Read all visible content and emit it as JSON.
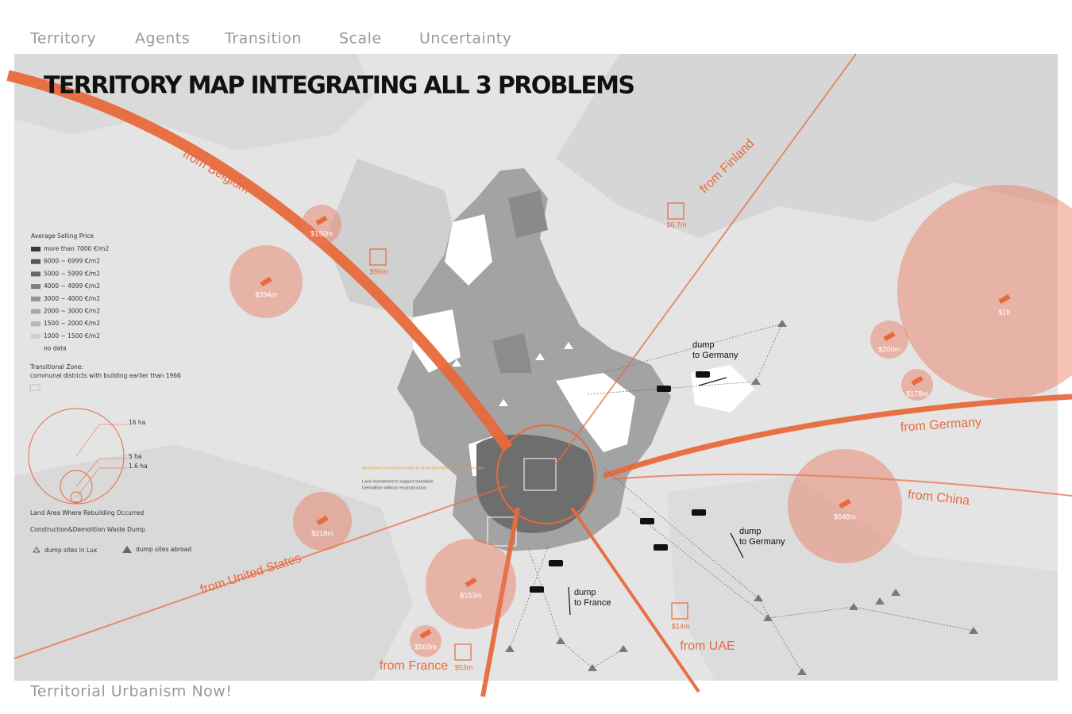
{
  "nav": {
    "tabs": [
      "Territory",
      "Agents",
      "Transition",
      "Scale",
      "Uncertainty"
    ],
    "active": 0
  },
  "title": "TERRITORY MAP INTEGRATING ALL 3 PROBLEMS",
  "footer": "Territorial Urbanism Now!",
  "legend": {
    "price_title": "Average Selling Price",
    "price_items": [
      "more than 7000 €/m2",
      "6000 ~ 6999 €/m2",
      "5000 ~ 5999 €/m2",
      "4000 ~ 4999 €/m2",
      "3000 ~ 4000 €/m2",
      "2000 ~ 3000 €/m2",
      "1500 ~ 2000 €/m2",
      "1000 ~ 1500 €/m2",
      "no data"
    ],
    "transition_title": "Transitional Zone:",
    "transition_desc": "communal districts with building earlier than 1966",
    "circle_sizes": [
      "16 ha",
      "5 ha",
      "1.6 ha"
    ],
    "rebuild_label": "Land Area Where Rebuilding Occurred",
    "dump_title": "Construction&Demolition Waste Dump",
    "dump_lux": "dump sites in Lux",
    "dump_abroad": "dump sites abroad"
  },
  "flows": [
    "from Belgium",
    "from Finland",
    "from Germany",
    "from China",
    "from United States",
    "from France",
    "from UAE"
  ],
  "investments": [
    "$192m",
    "$96m",
    "$394m",
    "$6.7m",
    "$1b",
    "$200m",
    "$178m",
    "$648m",
    "$218m",
    "$153m",
    "$569m",
    "$53m",
    "$14m"
  ],
  "dumps": [
    {
      "label": "dump",
      "dest": "to Germany"
    },
    {
      "label": "dump",
      "dest": "to Germany"
    },
    {
      "label": "dump",
      "dest": "to France"
    }
  ],
  "annotations": [
    "Abundant investment leads to great demolition & reconstruction",
    "Lack investment to support transition",
    "Demolition without reconstruction"
  ]
}
